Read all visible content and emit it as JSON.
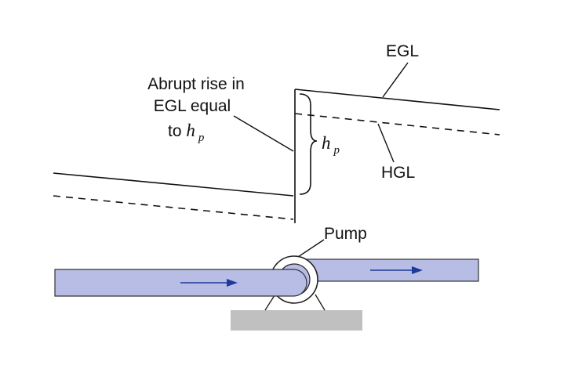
{
  "labels": {
    "egl": "EGL",
    "hgl": "HGL",
    "pump": "Pump",
    "abrupt_line1": "Abrupt rise in",
    "abrupt_line2": "EGL equal",
    "abrupt_line3_prefix": "to ",
    "h_symbol": "h",
    "h_subscript": "p"
  },
  "colors": {
    "pipe_fill": "#b8bde6",
    "pipe_stroke": "#333333",
    "flow_arrow": "#1f3a9a",
    "base_fill": "#c0c0c0",
    "line": "#111111"
  },
  "icons": [
    "flow-arrow-icon",
    "pump-icon",
    "brace-icon"
  ]
}
